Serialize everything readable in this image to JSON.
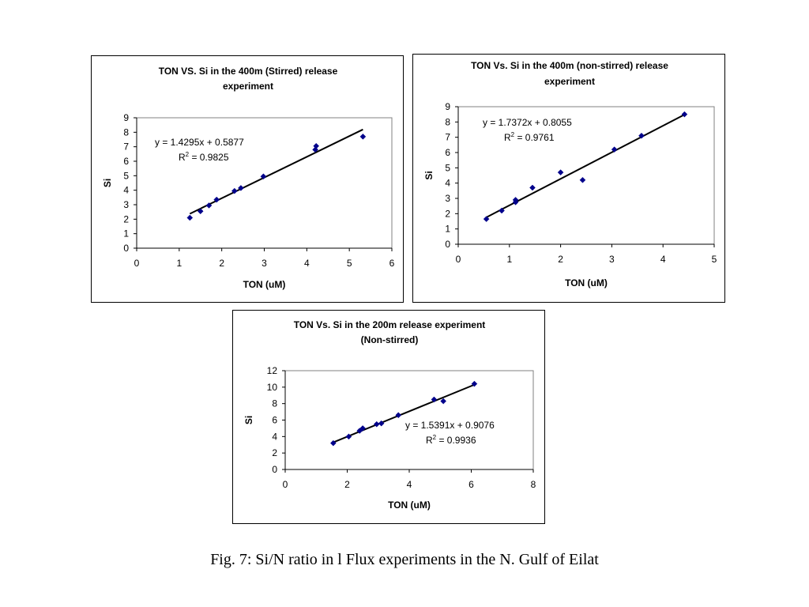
{
  "caption": "Fig. 7: Si/N ratio in l Flux experiments in the N. Gulf of Eilat",
  "colors": {
    "marker": "#00008B",
    "trendline": "#000000",
    "plot_border": "#808080"
  },
  "chart_data": [
    {
      "type": "scatter",
      "title_lines": [
        "TON VS. Si in the 400m (Stirred) release",
        "experiment"
      ],
      "xlabel": "TON (uM)",
      "ylabel": "Si",
      "xlim": [
        0,
        6
      ],
      "ylim": [
        0,
        9
      ],
      "xticks": [
        "0",
        "1",
        "2",
        "3",
        "4",
        "5",
        "6"
      ],
      "yticks": [
        "0",
        "1",
        "2",
        "3",
        "4",
        "5",
        "6",
        "7",
        "8",
        "9"
      ],
      "x": [
        1.25,
        1.5,
        1.7,
        1.88,
        2.3,
        2.45,
        2.98,
        4.2,
        4.22,
        5.32
      ],
      "y": [
        2.1,
        2.55,
        2.95,
        3.35,
        3.95,
        4.15,
        4.95,
        6.8,
        7.05,
        7.7
      ],
      "trendline": {
        "slope": 1.4295,
        "intercept": 0.5877,
        "x_range": [
          1.25,
          5.32
        ]
      },
      "equation_lines": [
        "y = 1.4295x + 0.5877",
        "R",
        "2",
        " = 0.9825"
      ],
      "grid": false,
      "legend": "none"
    },
    {
      "type": "scatter",
      "title_lines": [
        "TON Vs. Si in the 400m (non-stirred) release",
        "experiment"
      ],
      "xlabel": "TON (uM)",
      "ylabel": "Si",
      "xlim": [
        0,
        5
      ],
      "ylim": [
        0,
        9
      ],
      "xticks": [
        "0",
        "1",
        "2",
        "3",
        "4",
        "5"
      ],
      "yticks": [
        "0",
        "1",
        "2",
        "3",
        "4",
        "5",
        "6",
        "7",
        "8",
        "9"
      ],
      "x": [
        0.55,
        0.85,
        1.12,
        1.12,
        1.45,
        2.0,
        2.43,
        3.05,
        3.58,
        4.42
      ],
      "y": [
        1.65,
        2.2,
        2.75,
        2.9,
        3.7,
        4.7,
        4.2,
        6.2,
        7.1,
        8.5
      ],
      "trendline": {
        "slope": 1.7372,
        "intercept": 0.8055,
        "x_range": [
          0.55,
          4.42
        ]
      },
      "equation_lines": [
        "y = 1.7372x + 0.8055",
        "R",
        "2",
        " = 0.9761"
      ],
      "grid": false,
      "legend": "none"
    },
    {
      "type": "scatter",
      "title_lines": [
        "TON Vs. Si in the 200m release experiment",
        "(Non-stirred)"
      ],
      "xlabel": "TON (uM)",
      "ylabel": "Si",
      "xlim": [
        0,
        8
      ],
      "ylim": [
        0,
        12
      ],
      "xticks": [
        "0",
        "2",
        "4",
        "6",
        "8"
      ],
      "yticks": [
        "0",
        "2",
        "4",
        "6",
        "8",
        "10",
        "12"
      ],
      "x": [
        1.55,
        2.05,
        2.4,
        2.5,
        2.95,
        3.1,
        3.65,
        4.8,
        5.1,
        6.1
      ],
      "y": [
        3.2,
        4.0,
        4.7,
        5.0,
        5.5,
        5.6,
        6.6,
        8.5,
        8.3,
        10.4
      ],
      "trendline": {
        "slope": 1.5391,
        "intercept": 0.9076,
        "x_range": [
          1.55,
          6.1
        ]
      },
      "equation_lines": [
        "y = 1.5391x + 0.9076",
        "R",
        "2",
        " = 0.9936"
      ],
      "grid": false,
      "legend": "none"
    }
  ]
}
